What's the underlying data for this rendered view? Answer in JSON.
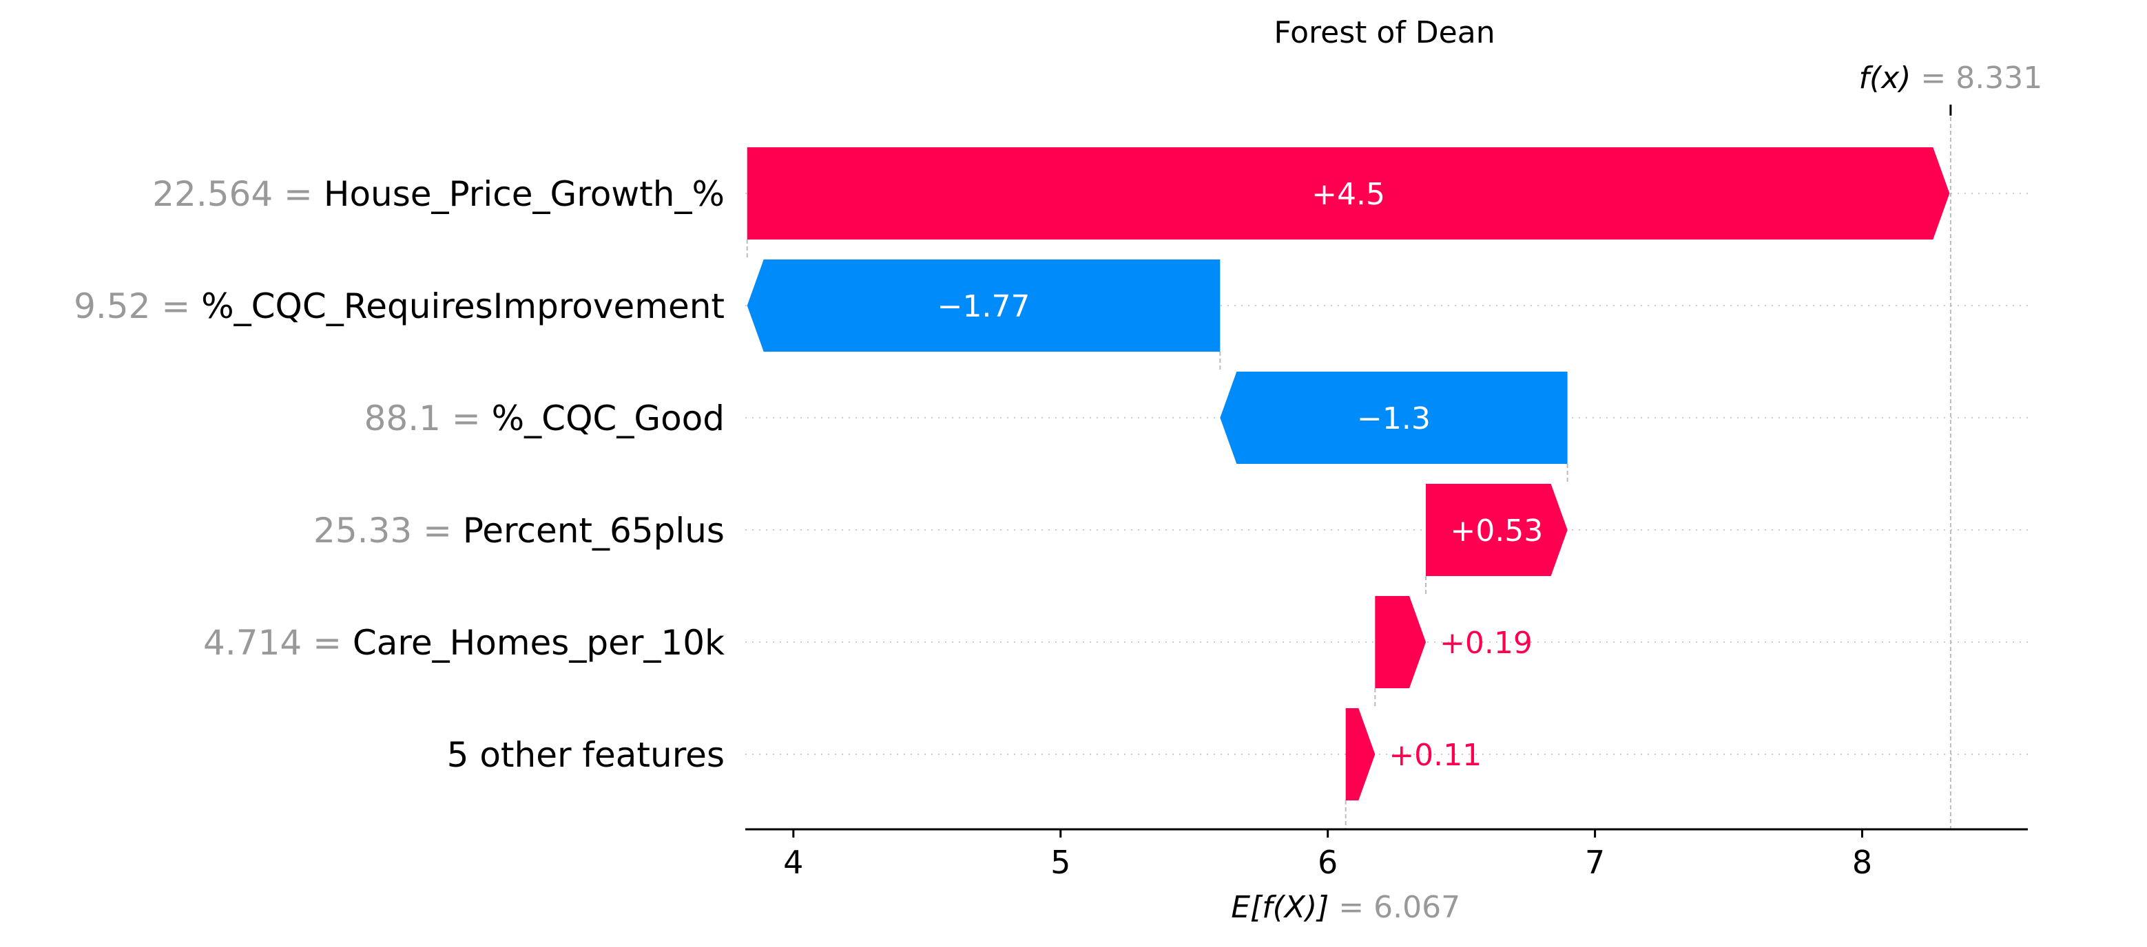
{
  "chart_data": {
    "type": "bar",
    "subtype": "shap-waterfall",
    "title": "Forest of Dean",
    "base_value": 6.067,
    "output_value": 8.331,
    "base_label": {
      "text": "E[f(X)]",
      "eq": " = ",
      "value": "6.067"
    },
    "output_label": {
      "text": "f(x)",
      "eq": " = ",
      "value": "8.331"
    },
    "features": [
      {
        "value_text": "22.564 = ",
        "name": "House_Price_Growth_%",
        "contribution": 4.5,
        "label": "+4.5"
      },
      {
        "value_text": "9.52 = ",
        "name": "%_CQC_RequiresImprovement",
        "contribution": -1.77,
        "label": "−1.77"
      },
      {
        "value_text": "88.1 = ",
        "name": "%_CQC_Good",
        "contribution": -1.3,
        "label": "−1.3"
      },
      {
        "value_text": "25.33 = ",
        "name": "Percent_65plus",
        "contribution": 0.53,
        "label": "+0.53"
      },
      {
        "value_text": "4.714 = ",
        "name": "Care_Homes_per_10k",
        "contribution": 0.19,
        "label": "+0.19"
      },
      {
        "value_text": "",
        "name": "5 other features",
        "contribution": 0.11,
        "label": "+0.11"
      }
    ],
    "xlim": [
      3.82,
      8.62
    ],
    "xticks": [
      "4",
      "5",
      "6",
      "7",
      "8"
    ],
    "colors": {
      "positive": "#ff0051",
      "negative": "#008bfb",
      "muted_text": "#999999",
      "grid": "#cccccc",
      "axis": "#000000"
    }
  }
}
